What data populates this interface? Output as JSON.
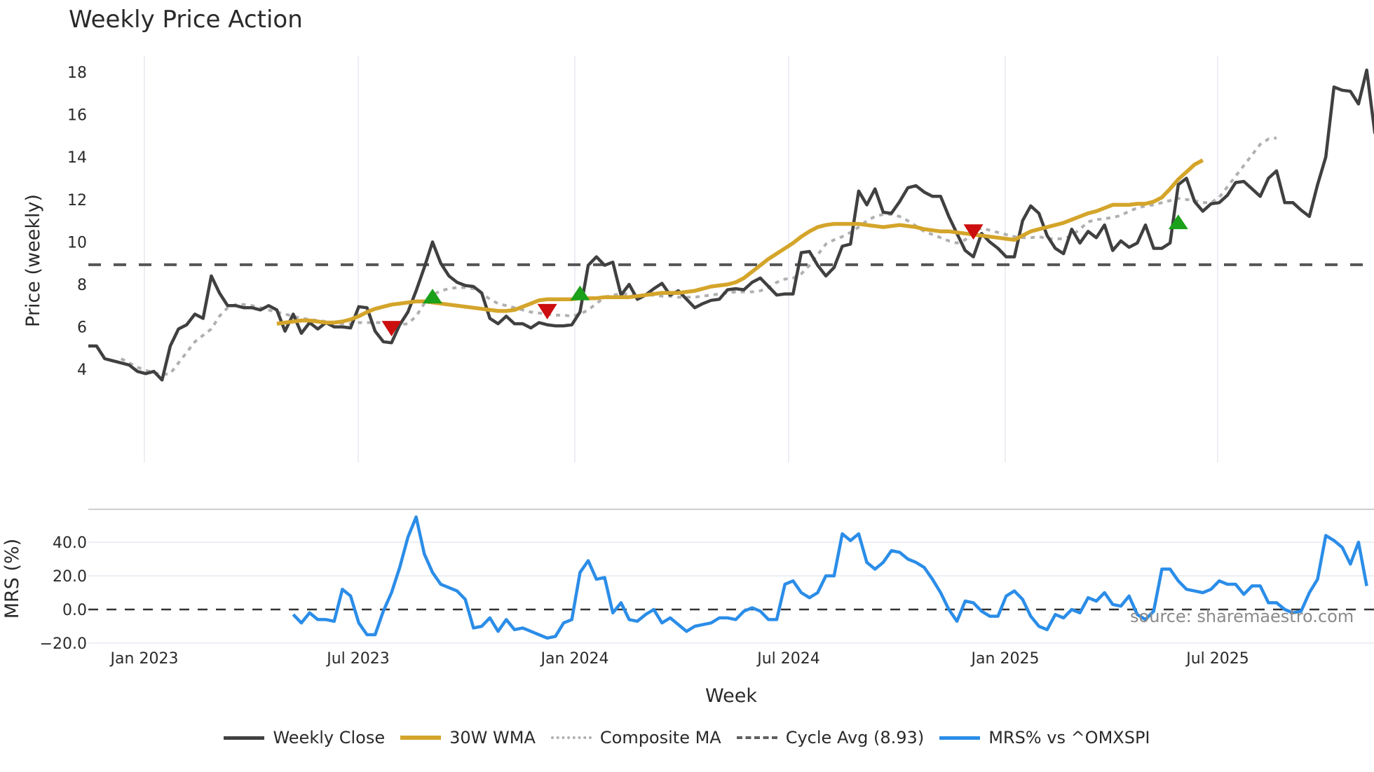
{
  "header": {
    "title": "Weekly Price Action"
  },
  "source_label": "source: sharemaestro.com",
  "legend": [
    {
      "label": "Weekly Close",
      "style": "solid",
      "color": "#404040"
    },
    {
      "label": "30W WMA",
      "style": "solid",
      "color": "#d4a52a"
    },
    {
      "label": "Composite MA",
      "style": "dotted",
      "color": "#b0b0b0"
    },
    {
      "label": "Cycle Avg (8.93)",
      "style": "dashed",
      "color": "#606060"
    },
    {
      "label": "MRS% vs ^OMXSPI",
      "style": "solid",
      "color": "#2b8de8"
    }
  ],
  "chart_data": [
    {
      "type": "line",
      "title": "Weekly Price Action",
      "xlabel": "Week",
      "ylabel": "Price (weekly)",
      "ylim": [
        3.0,
        19.0
      ],
      "yticks": [
        4,
        6,
        8,
        10,
        12,
        14,
        16,
        18
      ],
      "xticks": [
        "Jan 2023",
        "Jul 2023",
        "Jan 2024",
        "Jul 2024",
        "Jan 2025",
        "Jul 2025"
      ],
      "grid": "vertical",
      "x_start_week_index": 0,
      "cycle_avg": 8.93,
      "series": [
        {
          "name": "Weekly Close",
          "color": "#404040",
          "values": [
            5.1,
            5.1,
            4.5,
            4.4,
            4.3,
            4.2,
            3.9,
            3.8,
            3.9,
            3.5,
            5.1,
            5.9,
            6.1,
            6.6,
            6.4,
            8.4,
            7.6,
            7.0,
            7.0,
            6.9,
            6.9,
            6.8,
            7.0,
            6.8,
            5.8,
            6.6,
            5.7,
            6.2,
            5.9,
            6.2,
            6.0,
            6.0,
            5.95,
            6.95,
            6.9,
            5.8,
            5.3,
            5.25,
            6.1,
            6.7,
            7.7,
            8.8,
            10.0,
            9.0,
            8.4,
            8.1,
            7.95,
            7.9,
            7.6,
            6.4,
            6.15,
            6.5,
            6.15,
            6.15,
            5.95,
            6.2,
            6.1,
            6.05,
            6.05,
            6.1,
            6.7,
            8.9,
            9.3,
            8.9,
            9.05,
            7.5,
            8.0,
            7.3,
            7.5,
            7.8,
            8.05,
            7.5,
            7.7,
            7.3,
            6.9,
            7.1,
            7.25,
            7.3,
            7.75,
            7.8,
            7.75,
            8.1,
            8.3,
            7.9,
            7.5,
            7.55,
            7.55,
            9.5,
            9.55,
            8.9,
            8.4,
            8.8,
            9.8,
            9.9,
            12.4,
            11.75,
            12.5,
            11.4,
            11.35,
            11.9,
            12.55,
            12.65,
            12.35,
            12.15,
            12.15,
            11.2,
            10.4,
            9.6,
            9.3,
            10.4,
            10.0,
            9.7,
            9.3,
            9.3,
            11.0,
            11.7,
            11.35,
            10.3,
            9.7,
            9.45,
            10.6,
            9.95,
            10.5,
            10.2,
            10.8,
            9.6,
            10.05,
            9.75,
            9.95,
            10.8,
            9.7,
            9.7,
            9.95,
            12.7,
            13.0,
            11.9,
            11.45,
            11.8,
            11.85,
            12.2,
            12.8,
            12.85,
            12.5,
            12.15,
            13.0,
            13.35,
            11.85,
            11.85,
            11.5,
            11.2,
            12.7,
            14.0,
            17.3,
            17.15,
            17.1,
            16.5,
            18.1,
            15.1
          ]
        },
        {
          "name": "30W WMA",
          "color": "#d4a52a",
          "start_index": 23,
          "values": [
            6.15,
            6.2,
            6.25,
            6.3,
            6.3,
            6.25,
            6.2,
            6.2,
            6.25,
            6.35,
            6.5,
            6.7,
            6.85,
            6.95,
            7.05,
            7.1,
            7.15,
            7.2,
            7.2,
            7.15,
            7.1,
            7.05,
            7.0,
            6.95,
            6.9,
            6.85,
            6.8,
            6.75,
            6.75,
            6.8,
            6.95,
            7.1,
            7.25,
            7.3,
            7.3,
            7.3,
            7.3,
            7.35,
            7.35,
            7.35,
            7.4,
            7.4,
            7.4,
            7.4,
            7.45,
            7.5,
            7.55,
            7.6,
            7.6,
            7.6,
            7.65,
            7.7,
            7.8,
            7.9,
            7.95,
            8.0,
            8.1,
            8.3,
            8.6,
            8.9,
            9.2,
            9.45,
            9.7,
            9.95,
            10.25,
            10.5,
            10.7,
            10.8,
            10.85,
            10.85,
            10.85,
            10.85,
            10.8,
            10.75,
            10.7,
            10.75,
            10.8,
            10.75,
            10.7,
            10.6,
            10.55,
            10.5,
            10.5,
            10.45,
            10.4,
            10.35,
            10.3,
            10.25,
            10.2,
            10.15,
            10.1,
            10.3,
            10.5,
            10.6,
            10.7,
            10.8,
            10.9,
            11.05,
            11.2,
            11.35,
            11.45,
            11.6,
            11.75,
            11.75,
            11.75,
            11.8,
            11.8,
            11.9,
            12.1,
            12.5,
            12.95,
            13.3,
            13.65,
            13.85
          ]
        },
        {
          "name": "Composite MA",
          "color": "#b0b0b0",
          "start_index": 4,
          "values": [
            4.5,
            4.3,
            4.1,
            3.95,
            3.85,
            3.75,
            3.8,
            4.3,
            4.8,
            5.3,
            5.6,
            5.9,
            6.5,
            6.9,
            7.05,
            7.05,
            7.0,
            6.9,
            6.8,
            6.7,
            6.6,
            6.5,
            6.4,
            6.35,
            6.3,
            6.25,
            6.2,
            6.15,
            6.15,
            6.2,
            6.2,
            6.2,
            6.2,
            6.15,
            6.1,
            6.15,
            6.5,
            7.1,
            7.5,
            7.7,
            7.8,
            7.85,
            7.85,
            7.8,
            7.6,
            7.3,
            7.1,
            7.0,
            6.9,
            6.8,
            6.7,
            6.65,
            6.6,
            6.55,
            6.55,
            6.5,
            6.6,
            6.8,
            7.1,
            7.4,
            7.5,
            7.55,
            7.55,
            7.5,
            7.5,
            7.5,
            7.45,
            7.45,
            7.4,
            7.4,
            7.4,
            7.45,
            7.5,
            7.55,
            7.6,
            7.65,
            7.65,
            7.65,
            7.7,
            7.85,
            8.1,
            8.25,
            8.3,
            8.5,
            8.9,
            9.4,
            9.9,
            10.1,
            10.25,
            10.45,
            10.7,
            11.0,
            11.2,
            11.3,
            11.3,
            11.2,
            11.0,
            10.75,
            10.5,
            10.35,
            10.2,
            10.05,
            9.95,
            10.1,
            10.5,
            10.65,
            10.55,
            10.45,
            10.35,
            10.25,
            10.2,
            10.2,
            10.25,
            10.15,
            10.15,
            10.15,
            10.3,
            10.6,
            10.95,
            11.05,
            11.1,
            11.15,
            11.25,
            11.45,
            11.6,
            11.7,
            11.75,
            11.85,
            11.95,
            12.05,
            12.0,
            11.95,
            11.85,
            11.85,
            12.1,
            12.6,
            13.1,
            13.6,
            14.1,
            14.6,
            14.85,
            14.9
          ]
        },
        {
          "name": "Cycle Avg (8.93)",
          "color": "#606060",
          "values": "constant 8.93"
        }
      ],
      "signals": [
        {
          "type": "buy",
          "index": 42,
          "value": 7.4,
          "color": "#1aa01a"
        },
        {
          "type": "sell",
          "index": 37,
          "value": 5.95,
          "color": "#cc0e0e"
        },
        {
          "type": "sell",
          "index": 56,
          "value": 6.75,
          "color": "#cc0e0e"
        },
        {
          "type": "buy",
          "index": 60,
          "value": 7.55,
          "color": "#1aa01a"
        },
        {
          "type": "sell",
          "index": 108,
          "value": 10.5,
          "color": "#cc0e0e"
        },
        {
          "type": "buy",
          "index": 133,
          "value": 10.9,
          "color": "#1aa01a"
        }
      ]
    },
    {
      "type": "line",
      "ylabel": "MRS (%)",
      "ylim": [
        -20,
        60
      ],
      "yticks": [
        "-20.0",
        "0.0",
        "20.0",
        "40.0"
      ],
      "zero_line": "dashed",
      "series": [
        {
          "name": "MRS% vs ^OMXSPI",
          "color": "#2b8de8",
          "start_index": 25,
          "values": [
            -3,
            -8,
            -2,
            -6,
            -6,
            -7,
            12,
            8,
            -8,
            -15,
            -15,
            -1,
            10,
            25,
            43,
            55,
            33,
            22,
            15,
            13,
            11,
            6,
            -11,
            -10,
            -5,
            -13,
            -6,
            -12,
            -11,
            -13,
            -15,
            -17,
            -16,
            -8,
            -6,
            22,
            29,
            18,
            19,
            -2,
            4,
            -6,
            -7,
            -3,
            0,
            -8,
            -5,
            -9,
            -13,
            -10,
            -9,
            -8,
            -5,
            -5,
            -6,
            -1,
            1,
            -1,
            -6,
            -6,
            15,
            17,
            10,
            7,
            10,
            20,
            20,
            45,
            41,
            45,
            28,
            24,
            28,
            35,
            34,
            30,
            28,
            25,
            18,
            10,
            0,
            -7,
            5,
            4,
            -1,
            -4,
            -4,
            8,
            11,
            6,
            -4,
            -10,
            -12,
            -3,
            -5,
            0,
            -2,
            7,
            5,
            10,
            3,
            2,
            8,
            -3,
            -6,
            -1,
            24,
            24,
            17,
            12,
            11,
            10,
            12,
            17,
            15,
            15,
            9,
            14,
            14,
            4,
            4,
            0,
            -2,
            -1,
            10,
            18,
            44,
            41,
            37,
            27,
            40,
            14
          ]
        }
      ]
    }
  ]
}
